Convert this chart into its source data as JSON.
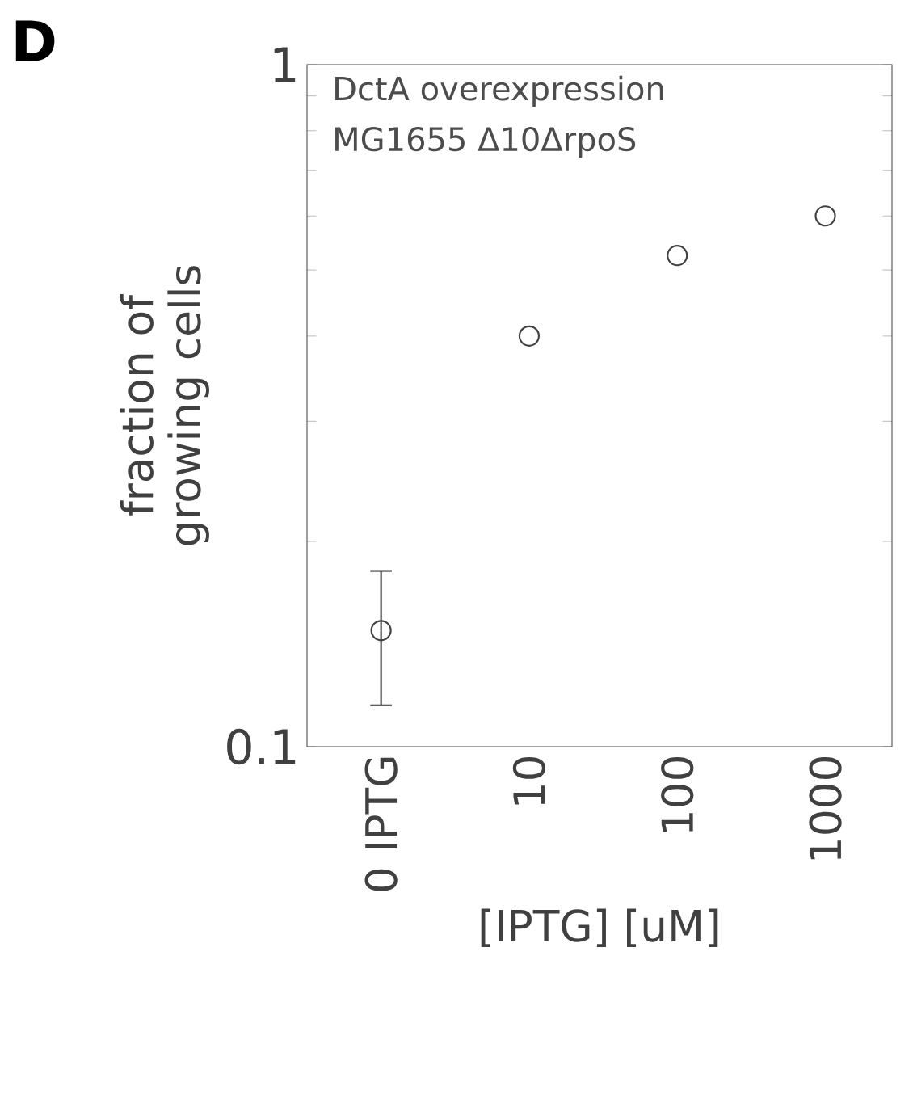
{
  "chart_data": {
    "type": "scatter",
    "title": "D",
    "xlabel": "[IPTG] [uM]",
    "ylabel": "fraction of growing cells",
    "categories": [
      "0 IPTG",
      "10",
      "100",
      "1000"
    ],
    "values": [
      0.148,
      0.4,
      0.525,
      0.6
    ],
    "errors": [
      [
        0.115,
        0.181
      ],
      null,
      null,
      null
    ],
    "color": "#404040",
    "log": "y",
    "ylim": [
      0.1,
      1
    ],
    "yticks": [
      0.1,
      {
        "value": 0.2,
        "label": null
      },
      {
        "value": 0.3,
        "label": null
      },
      {
        "value": 0.4,
        "label": null
      },
      {
        "value": 0.5,
        "label": null
      },
      {
        "value": 0.6,
        "label": null
      },
      {
        "value": 0.7,
        "label": null
      },
      {
        "value": 0.8,
        "label": null
      },
      {
        "value": 0.9,
        "label": null
      },
      1
    ],
    "marker": "circle",
    "grid": false,
    "annotations": [
      "DctA overexpression",
      "MG1655 Δ10ΔrpoS"
    ]
  }
}
